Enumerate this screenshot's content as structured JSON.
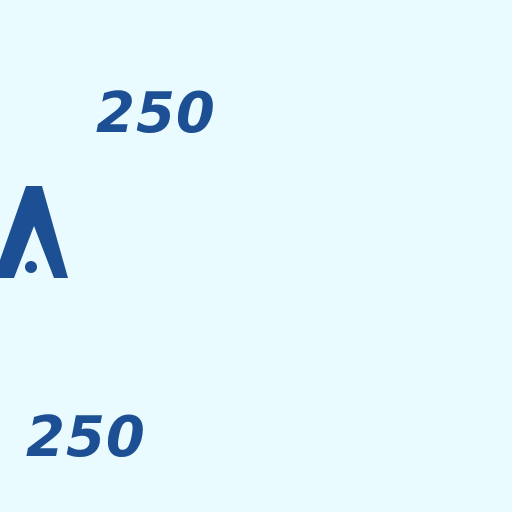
{
  "labels": {
    "top_value": "250",
    "bottom_value": "250"
  },
  "icons": {
    "left_fragment": "triangle-logo-fragment"
  },
  "colors": {
    "background": "#e9fbfe",
    "text": "#1c4f93"
  }
}
